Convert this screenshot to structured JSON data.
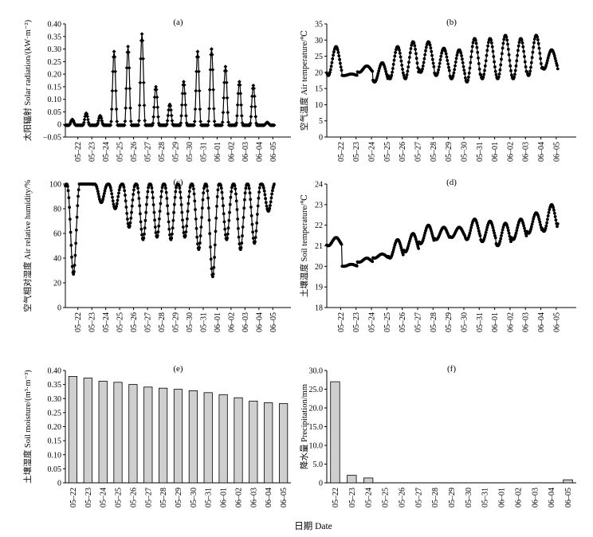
{
  "chart_data": [
    {
      "id": "a",
      "type": "line",
      "title": "(a)",
      "ylabel": "太阳辐射 Solar radiation/(kW·m⁻²)",
      "ylim": [
        -0.05,
        0.4
      ],
      "yticks": [
        -0.05,
        0.0,
        0.05,
        0.1,
        0.15,
        0.2,
        0.25,
        0.3,
        0.35,
        0.4
      ],
      "ytick_labels": [
        "−0.05",
        "0",
        "0.05",
        "0.10",
        "0.15",
        "0.20",
        "0.25",
        "0.30",
        "0.35",
        "0.40"
      ],
      "x_days": [
        "05–22",
        "05–23",
        "05–24",
        "05–25",
        "05–26",
        "05–27",
        "05–28",
        "05–29",
        "05–30",
        "05–31",
        "06–01",
        "06–02",
        "06–03",
        "06–04",
        "06–05"
      ],
      "x_start": -0.9,
      "x_end": 15.3,
      "marker": "diamond",
      "daily_base": [
        -0.003,
        -0.003,
        -0.003,
        -0.003,
        -0.003,
        -0.003,
        -0.003,
        -0.003,
        -0.003,
        -0.003,
        -0.003,
        -0.003,
        -0.003,
        -0.003,
        -0.003,
        -0.003
      ],
      "daily_peak": [
        0.02,
        0.045,
        0.035,
        0.29,
        0.31,
        0.36,
        0.15,
        0.08,
        0.17,
        0.29,
        0.3,
        0.23,
        0.17,
        0.155,
        0.008,
        0.0
      ],
      "series": [
        {
          "name": "Solar radiation",
          "shape": "diurnal"
        }
      ]
    },
    {
      "id": "b",
      "type": "line",
      "title": "(b)",
      "ylabel": "空气温度 Air temperature/℃",
      "ylim": [
        0,
        35
      ],
      "yticks": [
        0,
        5,
        10,
        15,
        20,
        25,
        30,
        35
      ],
      "ytick_labels": [
        "0",
        "5",
        "10",
        "15",
        "20",
        "25",
        "30",
        "35"
      ],
      "x_days": [
        "05–22",
        "05–23",
        "05–24",
        "05–25",
        "05–26",
        "05–27",
        "05–28",
        "05–29",
        "05–30",
        "05–31",
        "06–01",
        "06–02",
        "06–03",
        "06–04",
        "06–05"
      ],
      "x_start": -0.9,
      "x_end": 15.3,
      "marker": "circle",
      "daily_min": [
        19,
        19,
        20,
        17,
        18,
        18,
        20,
        19,
        18,
        17,
        18,
        18,
        18,
        19,
        21,
        21
      ],
      "daily_max": [
        28,
        19.5,
        22,
        23,
        28,
        29.5,
        29.5,
        27.5,
        27,
        30.5,
        30.5,
        31.5,
        30.5,
        31.5,
        27,
        22
      ],
      "series": [
        {
          "name": "Air temperature",
          "shape": "sinusoid"
        }
      ]
    },
    {
      "id": "c",
      "type": "line",
      "title": "(c)",
      "ylabel": "空气相对湿度 Air relative humidity/%",
      "ylim": [
        0,
        100
      ],
      "yticks": [
        0,
        20,
        40,
        60,
        80,
        100
      ],
      "ytick_labels": [
        "0",
        "20",
        "40",
        "60",
        "80",
        "100"
      ],
      "x_days": [
        "05–22",
        "05–23",
        "05–24",
        "05–25",
        "05–26",
        "05–27",
        "05–28",
        "05–29",
        "05–30",
        "05–31",
        "06–01",
        "06–02",
        "06–03",
        "06–04",
        "06–05"
      ],
      "x_start": -0.9,
      "x_end": 15.3,
      "marker": "circle",
      "daily_min": [
        27,
        100,
        85,
        80,
        65,
        55,
        57,
        55,
        57,
        47,
        25,
        55,
        47,
        52,
        78,
        100
      ],
      "daily_max": [
        100,
        100,
        100,
        100,
        100,
        100,
        100,
        100,
        100,
        100,
        100,
        100,
        100,
        100,
        100,
        100
      ],
      "series": [
        {
          "name": "Air relative humidity",
          "shape": "inverted-sinusoid"
        }
      ]
    },
    {
      "id": "d",
      "type": "line",
      "title": "(d)",
      "ylabel": "土壤温度 Soil temperature/℃",
      "ylim": [
        18,
        24
      ],
      "yticks": [
        18,
        19,
        20,
        21,
        22,
        23,
        24
      ],
      "ytick_labels": [
        "18",
        "19",
        "20",
        "21",
        "22",
        "23",
        "24"
      ],
      "x_days": [
        "05–22",
        "05–23",
        "05–24",
        "05–25",
        "05–26",
        "05–27",
        "05–28",
        "05–29",
        "05–30",
        "05–31",
        "06–01",
        "06–02",
        "06–03",
        "06–04",
        "06–05"
      ],
      "x_start": -0.9,
      "x_end": 15.3,
      "marker": "circle",
      "daily_min": [
        21.0,
        20.0,
        20.2,
        20.4,
        20.4,
        20.7,
        21.1,
        21.3,
        21.4,
        21.3,
        21.2,
        21.0,
        21.3,
        21.6,
        21.7,
        22.0
      ],
      "daily_max": [
        21.4,
        20.1,
        20.4,
        20.6,
        21.3,
        21.6,
        22.0,
        21.9,
        21.9,
        22.3,
        22.2,
        22.1,
        22.3,
        22.6,
        23.0,
        22.7
      ],
      "series": [
        {
          "name": "Soil temperature",
          "shape": "sinusoid"
        }
      ]
    },
    {
      "id": "e",
      "type": "bar",
      "title": "(e)",
      "ylabel": "土壤湿度 Soil moisture/(m³·m⁻³)",
      "ylim": [
        0,
        0.4
      ],
      "yticks": [
        0,
        0.05,
        0.1,
        0.15,
        0.2,
        0.25,
        0.3,
        0.35,
        0.4
      ],
      "ytick_labels": [
        "0",
        "0.05",
        "0.10",
        "0.15",
        "0.20",
        "0.25",
        "0.30",
        "0.35",
        "0.40"
      ],
      "categories": [
        "05–22",
        "05–23",
        "05–24",
        "05–25",
        "05–26",
        "05–27",
        "05–28",
        "05–29",
        "05–30",
        "05–31",
        "06–01",
        "06–02",
        "06–03",
        "06–04",
        "06–05"
      ],
      "values": [
        0.379,
        0.373,
        0.362,
        0.358,
        0.35,
        0.341,
        0.337,
        0.333,
        0.328,
        0.321,
        0.314,
        0.303,
        0.291,
        0.285,
        0.282
      ]
    },
    {
      "id": "f",
      "type": "bar",
      "title": "(f)",
      "ylabel": "降水量 Precipitation/mm",
      "ylim": [
        0,
        30
      ],
      "yticks": [
        0,
        5,
        10,
        15,
        20,
        25,
        30
      ],
      "ytick_labels": [
        "0",
        "5.0",
        "10.0",
        "15.0",
        "20.0",
        "25.0",
        "30.0"
      ],
      "categories": [
        "05–22",
        "05–23",
        "05–24",
        "05–25",
        "05–26",
        "05–27",
        "05–28",
        "05–29",
        "05–30",
        "05–31",
        "06–01",
        "06–02",
        "06–03",
        "06–04",
        "06–05"
      ],
      "values": [
        27.0,
        2.0,
        1.3,
        0,
        0,
        0,
        0,
        0,
        0,
        0,
        0,
        0,
        0,
        0,
        0.8
      ]
    }
  ],
  "figure": {
    "xlabel": "日期 Date"
  }
}
